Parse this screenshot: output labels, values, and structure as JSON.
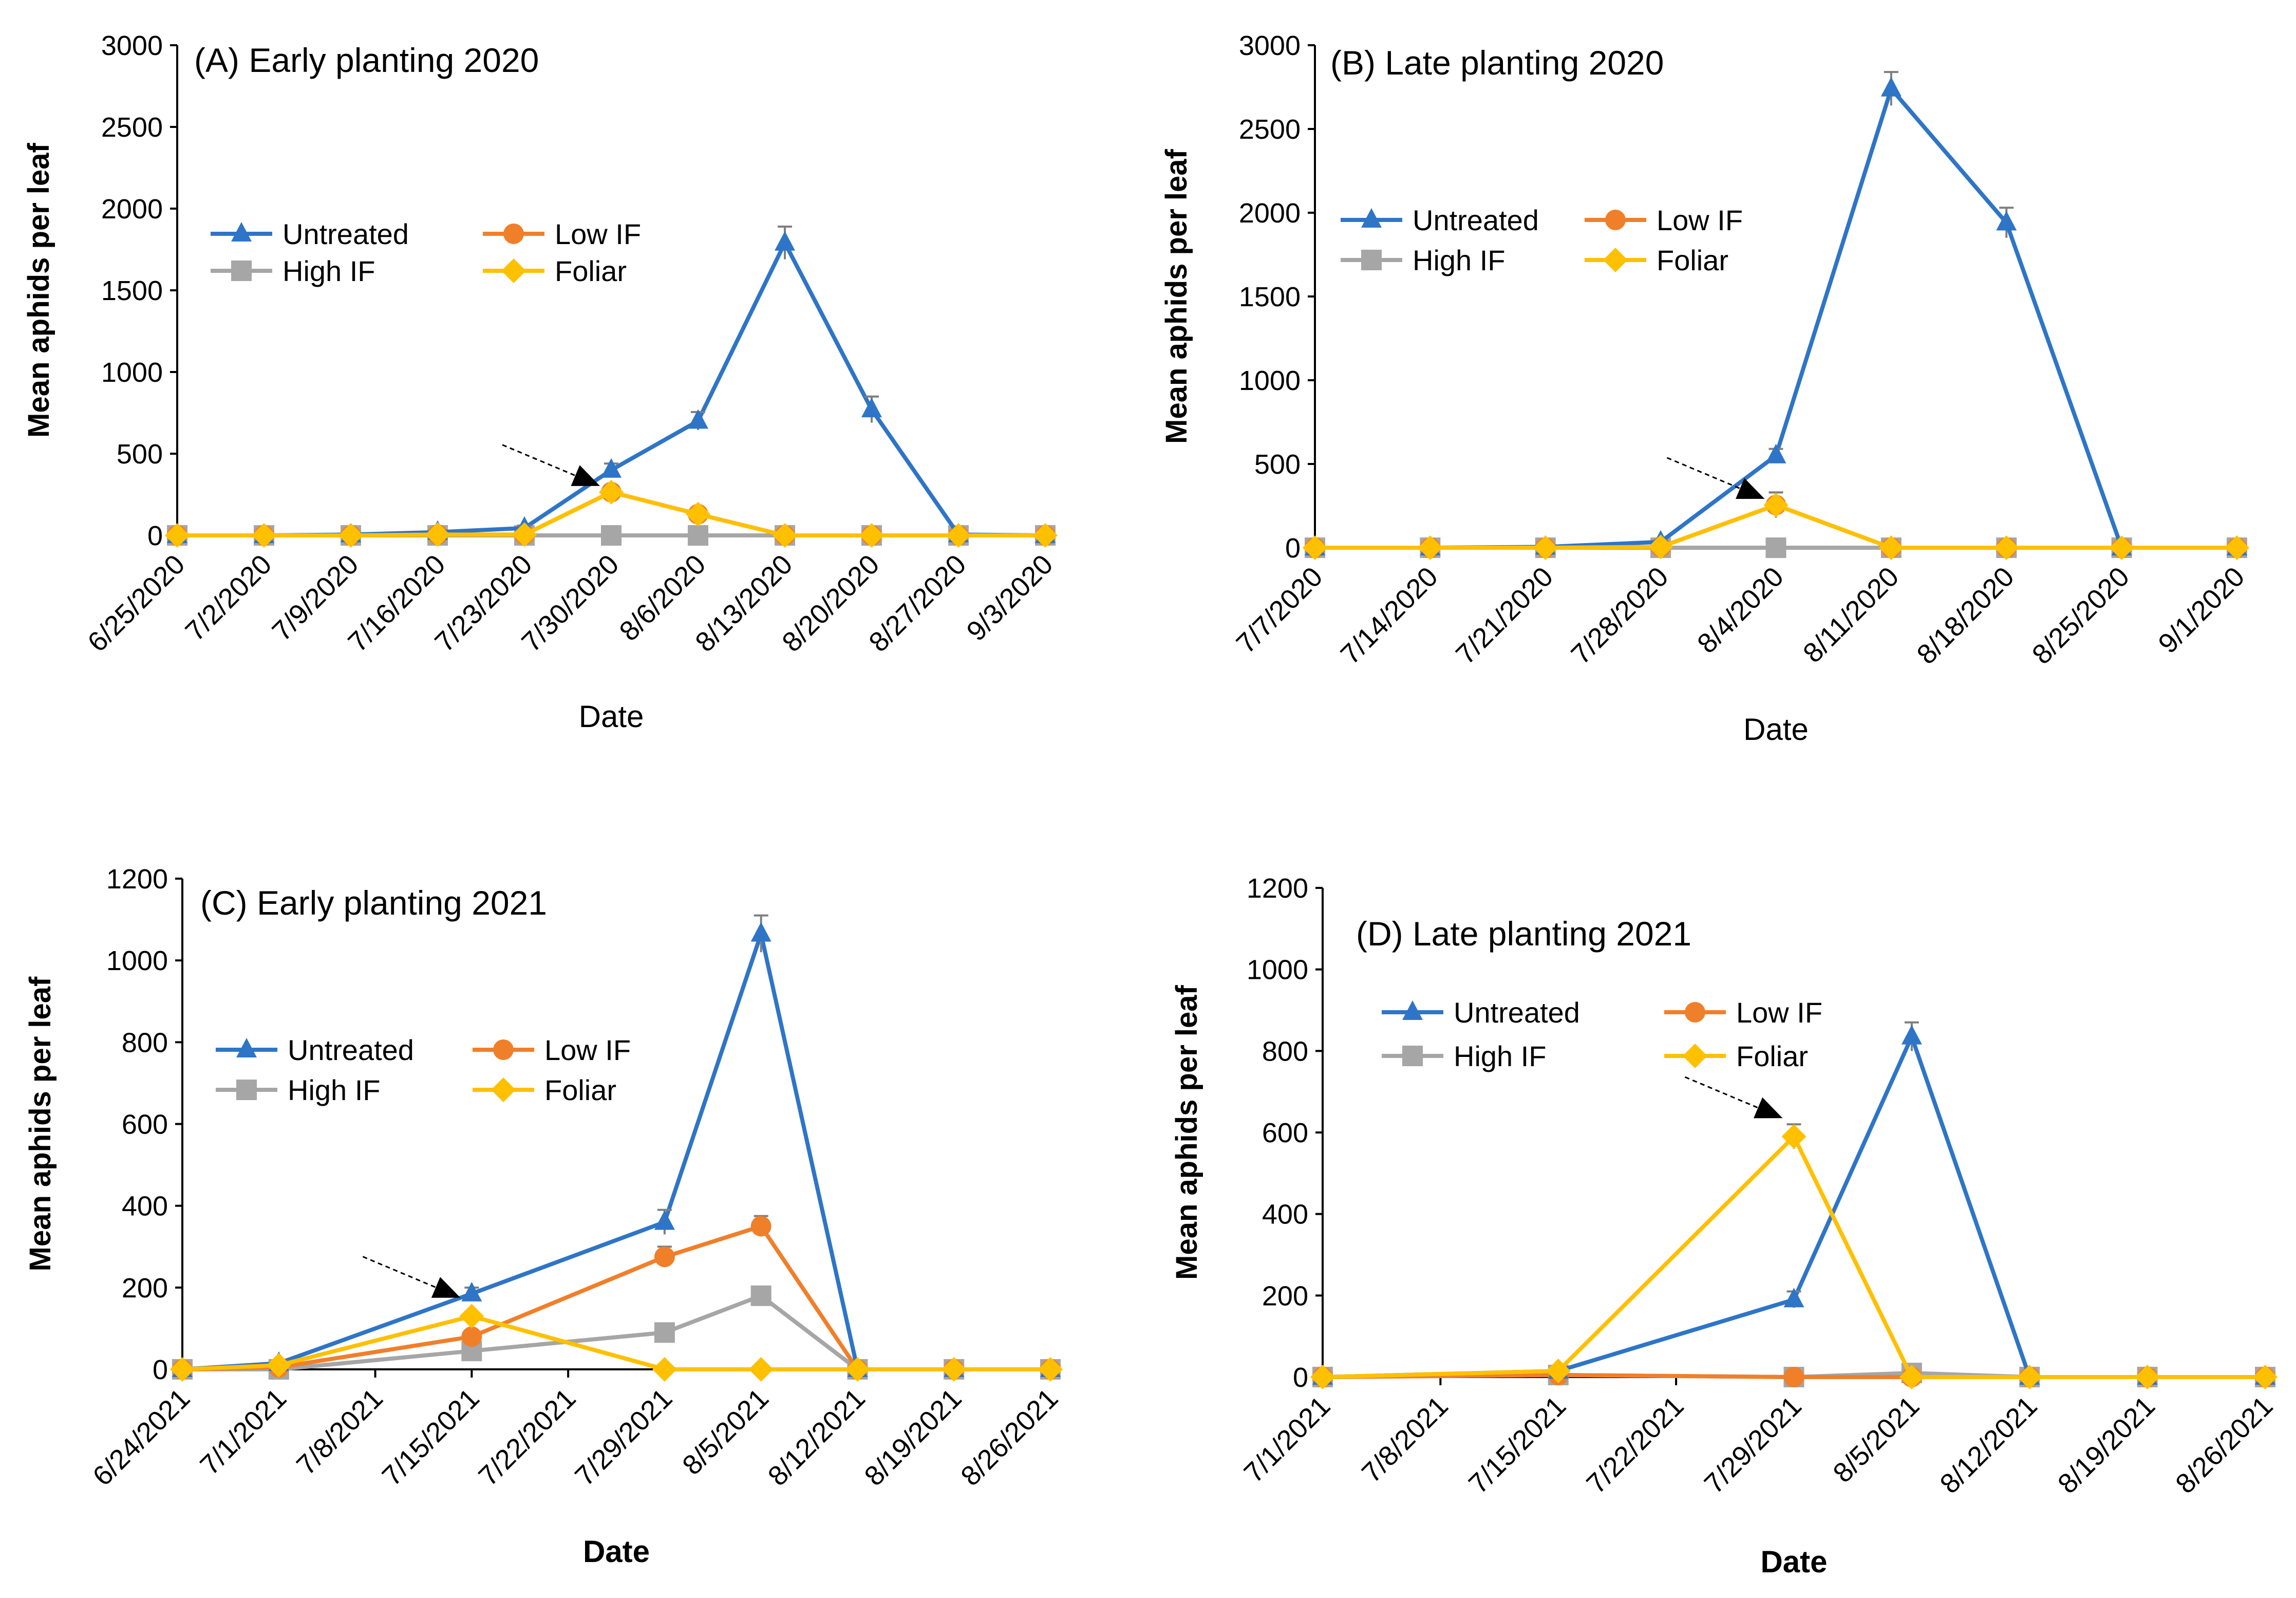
{
  "colors": {
    "Untreated": "#2E75C7",
    "Low IF": "#F07F2A",
    "High IF": "#A6A6A6",
    "Foliar": "#FFC000",
    "error_bar": "#7F7F7F",
    "axis": "#000000",
    "arrow": "#000000"
  },
  "chart_data": [
    {
      "type": "line",
      "title": "(A) Early planting 2020",
      "xlabel": "Date",
      "ylabel": "Mean aphids per leaf",
      "ylim": [
        0,
        3000
      ],
      "yticks": [
        0,
        500,
        1000,
        1500,
        2000,
        2500,
        3000
      ],
      "categories": [
        "6/25/2020",
        "7/2/2020",
        "7/9/2020",
        "7/16/2020",
        "7/23/2020",
        "7/30/2020",
        "8/6/2020",
        "8/13/2020",
        "8/20/2020",
        "8/27/2020",
        "9/3/2020"
      ],
      "series": [
        {
          "name": "Untreated",
          "marker": "triangle",
          "values": [
            0,
            0,
            5,
            20,
            45,
            400,
            700,
            1790,
            770,
            5,
            0
          ],
          "errors": [
            0,
            0,
            3,
            8,
            15,
            40,
            55,
            100,
            80,
            5,
            0
          ]
        },
        {
          "name": "Low IF",
          "marker": "circle",
          "values": [
            0,
            0,
            0,
            5,
            5,
            265,
            130,
            0,
            0,
            0,
            0
          ],
          "errors": [
            0,
            0,
            0,
            3,
            3,
            35,
            20,
            0,
            0,
            0,
            0
          ]
        },
        {
          "name": "High IF",
          "marker": "square",
          "values": [
            0,
            0,
            0,
            0,
            0,
            0,
            0,
            0,
            0,
            0,
            0
          ],
          "errors": [
            0,
            0,
            0,
            0,
            0,
            0,
            0,
            0,
            0,
            0,
            0
          ]
        },
        {
          "name": "Foliar",
          "marker": "diamond",
          "values": [
            0,
            0,
            0,
            5,
            5,
            265,
            130,
            0,
            0,
            0,
            0
          ],
          "errors": [
            0,
            0,
            0,
            3,
            3,
            35,
            20,
            0,
            0,
            0,
            0
          ]
        }
      ],
      "arrow_at": {
        "category": "7/30/2020",
        "value": 265
      },
      "legend": "upper-left",
      "axis_title_bold": false
    },
    {
      "type": "line",
      "title": "(B) Late planting 2020",
      "xlabel": "Date",
      "ylabel": "Mean aphids per leaf",
      "ylim": [
        0,
        3000
      ],
      "yticks": [
        0,
        500,
        1000,
        1500,
        2000,
        2500,
        3000
      ],
      "categories": [
        "7/7/2020",
        "7/14/2020",
        "7/21/2020",
        "7/28/2020",
        "8/4/2020",
        "8/11/2020",
        "8/18/2020",
        "8/25/2020",
        "9/1/2020"
      ],
      "series": [
        {
          "name": "Untreated",
          "marker": "triangle",
          "values": [
            0,
            0,
            5,
            35,
            550,
            2740,
            1940,
            0,
            0
          ],
          "errors": [
            0,
            0,
            3,
            10,
            40,
            100,
            90,
            0,
            0
          ]
        },
        {
          "name": "Low IF",
          "marker": "circle",
          "values": [
            0,
            0,
            0,
            5,
            255,
            0,
            0,
            0,
            0
          ],
          "errors": [
            0,
            0,
            0,
            3,
            75,
            0,
            0,
            0,
            0
          ]
        },
        {
          "name": "High IF",
          "marker": "square",
          "values": [
            0,
            0,
            0,
            0,
            0,
            0,
            0,
            0,
            0
          ],
          "errors": [
            0,
            0,
            0,
            0,
            0,
            0,
            0,
            0,
            0
          ]
        },
        {
          "name": "Foliar",
          "marker": "diamond",
          "values": [
            0,
            0,
            0,
            5,
            255,
            0,
            0,
            0,
            0
          ],
          "errors": [
            0,
            0,
            0,
            3,
            75,
            0,
            0,
            0,
            0
          ]
        }
      ],
      "arrow_at": {
        "category": "8/4/2020",
        "value": 255
      },
      "legend": "upper-left",
      "axis_title_bold": false
    },
    {
      "type": "line",
      "title": "(C) Early planting 2021",
      "xlabel": "Date",
      "ylabel": "Mean aphids per leaf",
      "ylim": [
        0,
        1200
      ],
      "yticks": [
        0,
        200,
        400,
        600,
        800,
        1000,
        1200
      ],
      "categories": [
        "6/24/2021",
        "7/1/2021",
        "7/8/2021",
        "7/15/2021",
        "7/22/2021",
        "7/29/2021",
        "8/5/2021",
        "8/12/2021",
        "8/19/2021",
        "8/26/2021"
      ],
      "series": [
        {
          "name": "Untreated",
          "marker": "triangle",
          "values": [
            0,
            15,
            null,
            185,
            null,
            360,
            1065,
            0,
            0,
            0
          ],
          "errors": [
            0,
            5,
            0,
            15,
            0,
            30,
            45,
            0,
            0,
            0
          ]
        },
        {
          "name": "Low IF",
          "marker": "circle",
          "values": [
            0,
            5,
            null,
            80,
            null,
            275,
            350,
            0,
            0,
            0
          ],
          "errors": [
            0,
            3,
            0,
            10,
            0,
            25,
            25,
            0,
            0,
            0
          ]
        },
        {
          "name": "High IF",
          "marker": "square",
          "values": [
            0,
            0,
            null,
            45,
            null,
            90,
            180,
            0,
            0,
            0
          ],
          "errors": [
            0,
            0,
            0,
            5,
            0,
            10,
            15,
            0,
            0,
            0
          ]
        },
        {
          "name": "Foliar",
          "marker": "diamond",
          "values": [
            0,
            10,
            null,
            130,
            null,
            0,
            0,
            0,
            0,
            0
          ],
          "errors": [
            0,
            3,
            0,
            10,
            0,
            0,
            0,
            0,
            0,
            0
          ]
        }
      ],
      "arrow_at": {
        "category": "7/15/2021",
        "value": 160
      },
      "legend": "upper-left",
      "axis_title_bold": true
    },
    {
      "type": "line",
      "title": "(D) Late planting 2021",
      "xlabel": "Date",
      "ylabel": "Mean aphids per leaf",
      "ylim": [
        0,
        1200
      ],
      "yticks": [
        0,
        200,
        400,
        600,
        800,
        1000,
        1200
      ],
      "categories": [
        "7/1/2021",
        "7/8/2021",
        "7/15/2021",
        "7/22/2021",
        "7/29/2021",
        "8/5/2021",
        "8/12/2021",
        "8/19/2021",
        "8/26/2021"
      ],
      "series": [
        {
          "name": "Untreated",
          "marker": "triangle",
          "values": [
            0,
            null,
            15,
            null,
            190,
            835,
            0,
            0,
            0
          ],
          "errors": [
            0,
            0,
            5,
            0,
            20,
            35,
            0,
            0,
            0
          ]
        },
        {
          "name": "Low IF",
          "marker": "circle",
          "values": [
            0,
            null,
            5,
            null,
            0,
            0,
            0,
            0,
            0
          ],
          "errors": [
            0,
            0,
            3,
            0,
            0,
            0,
            0,
            0,
            0
          ]
        },
        {
          "name": "High IF",
          "marker": "square",
          "values": [
            0,
            null,
            5,
            null,
            0,
            10,
            0,
            0,
            0
          ],
          "errors": [
            0,
            0,
            3,
            0,
            0,
            3,
            0,
            0,
            0
          ]
        },
        {
          "name": "Foliar",
          "marker": "diamond",
          "values": [
            0,
            null,
            15,
            null,
            590,
            0,
            0,
            0,
            0
          ],
          "errors": [
            0,
            0,
            5,
            0,
            30,
            0,
            0,
            0,
            0
          ]
        }
      ],
      "arrow_at": {
        "category": "7/29/2021",
        "value": 620
      },
      "legend": "upper-left",
      "axis_title_bold": true
    }
  ]
}
